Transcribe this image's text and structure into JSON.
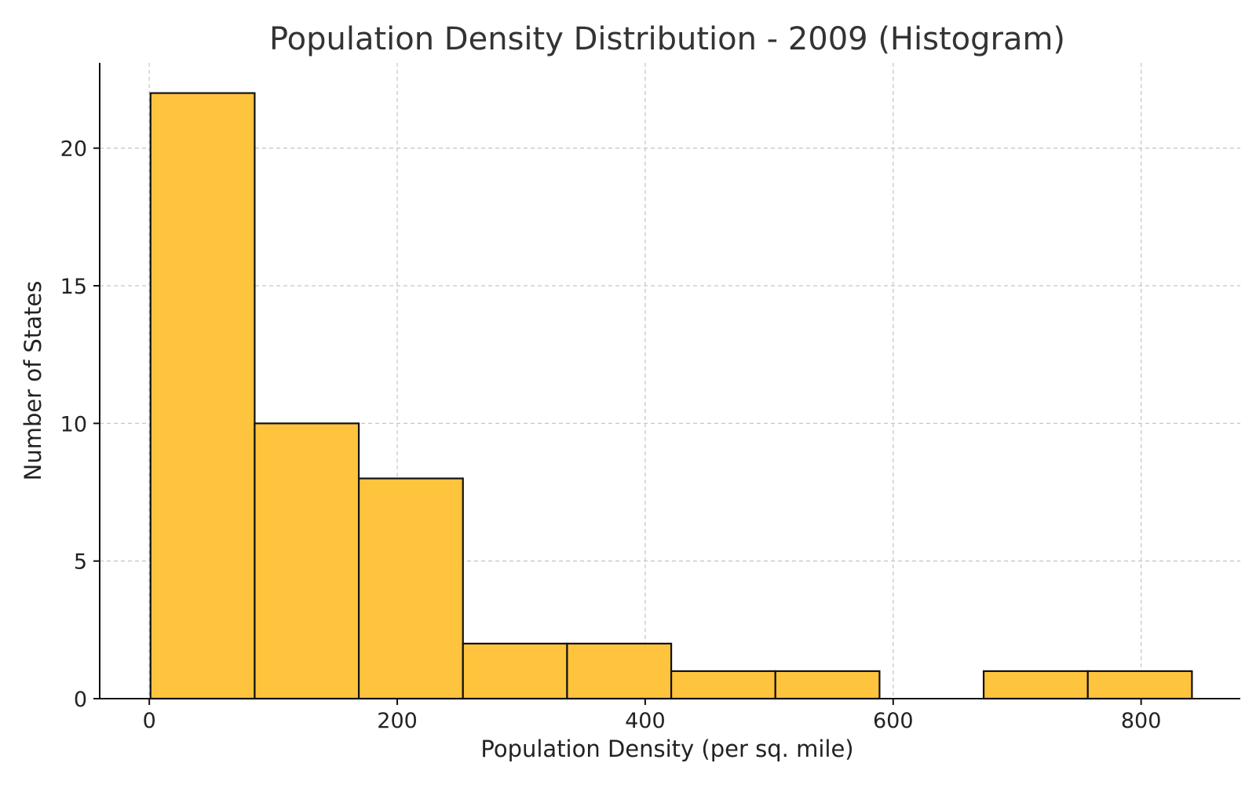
{
  "chart_data": {
    "type": "bar",
    "title": "Population Density Distribution - 2009 (Histogram)",
    "xlabel": "Population Density (per sq. mile)",
    "ylabel": "Number of States",
    "bin_edges": [
      1,
      85,
      169,
      253,
      337,
      421,
      505,
      589,
      673,
      757,
      841
    ],
    "values": [
      22,
      10,
      8,
      2,
      2,
      1,
      1,
      0,
      1,
      1
    ],
    "xlim": [
      -40,
      880
    ],
    "ylim": [
      0,
      23.1
    ],
    "xticks": [
      0,
      200,
      400,
      600,
      800
    ],
    "xtick_labels": [
      "0",
      "200",
      "400",
      "600",
      "800"
    ],
    "yticks": [
      0,
      5,
      10,
      15,
      20
    ],
    "ytick_labels": [
      "0",
      "5",
      "10",
      "15",
      "20"
    ],
    "grid": true,
    "bar_color": "#FFC43D",
    "edge_color": "#111111",
    "grid_color": "#c8c8c8"
  }
}
